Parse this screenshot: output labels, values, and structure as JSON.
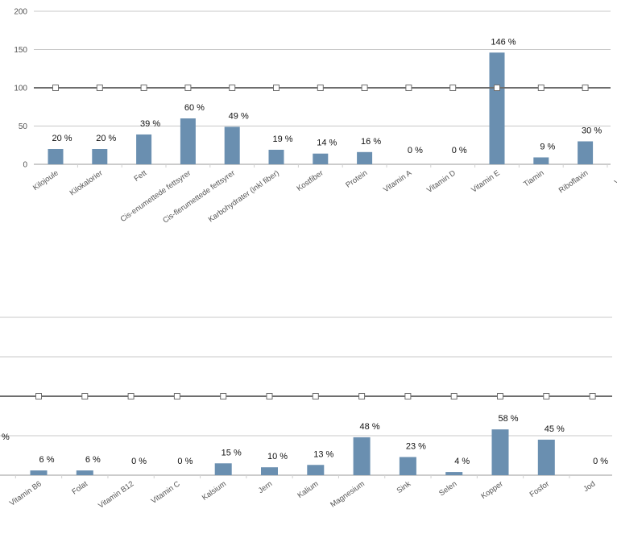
{
  "chart_data": [
    {
      "type": "bar",
      "title": "",
      "xlabel": "",
      "ylabel": "",
      "ylim": [
        0,
        200
      ],
      "yticks": [
        0,
        50,
        100,
        150,
        200
      ],
      "reference_line": 100,
      "grid": true,
      "categories": [
        "Kilojoule",
        "Kilokalorier",
        "Fett",
        "Cis-enumettede fettsyrer",
        "Cis-flerumettede fettsyrer",
        "Karbohydrater (inkl fiber)",
        "Kostfiber",
        "Protein",
        "Vitamin A",
        "Vitamin D",
        "Vitamin E",
        "Tiamin",
        "Riboflavin",
        "Vitam"
      ],
      "values": [
        20,
        20,
        39,
        60,
        49,
        19,
        14,
        16,
        0,
        0,
        146,
        9,
        30,
        null
      ],
      "data_labels": [
        "20 %",
        "20 %",
        "39 %",
        "60 %",
        "49 %",
        "19 %",
        "14 %",
        "16 %",
        "0 %",
        "0 %",
        "146 %",
        "9 %",
        "30 %",
        ""
      ]
    },
    {
      "type": "bar",
      "title": "",
      "xlabel": "",
      "ylabel": "",
      "grid": true,
      "reference_line": 100,
      "categories": [
        "Vitamin B6",
        "Folat",
        "Vitamin B12",
        "Vitamin C",
        "Kalsium",
        "Jern",
        "Kalium",
        "Magnesium",
        "Sink",
        "Selen",
        "Kopper",
        "Fosfor",
        "Jod"
      ],
      "values": [
        6,
        6,
        0,
        0,
        15,
        10,
        13,
        48,
        23,
        4,
        58,
        45,
        0
      ],
      "data_labels": [
        "6 %",
        "6 %",
        "0 %",
        "0 %",
        "15 %",
        "10 %",
        "13 %",
        "48 %",
        "23 %",
        "4 %",
        "58 %",
        "45 %",
        "0 %"
      ],
      "clipped_label": "%"
    }
  ]
}
